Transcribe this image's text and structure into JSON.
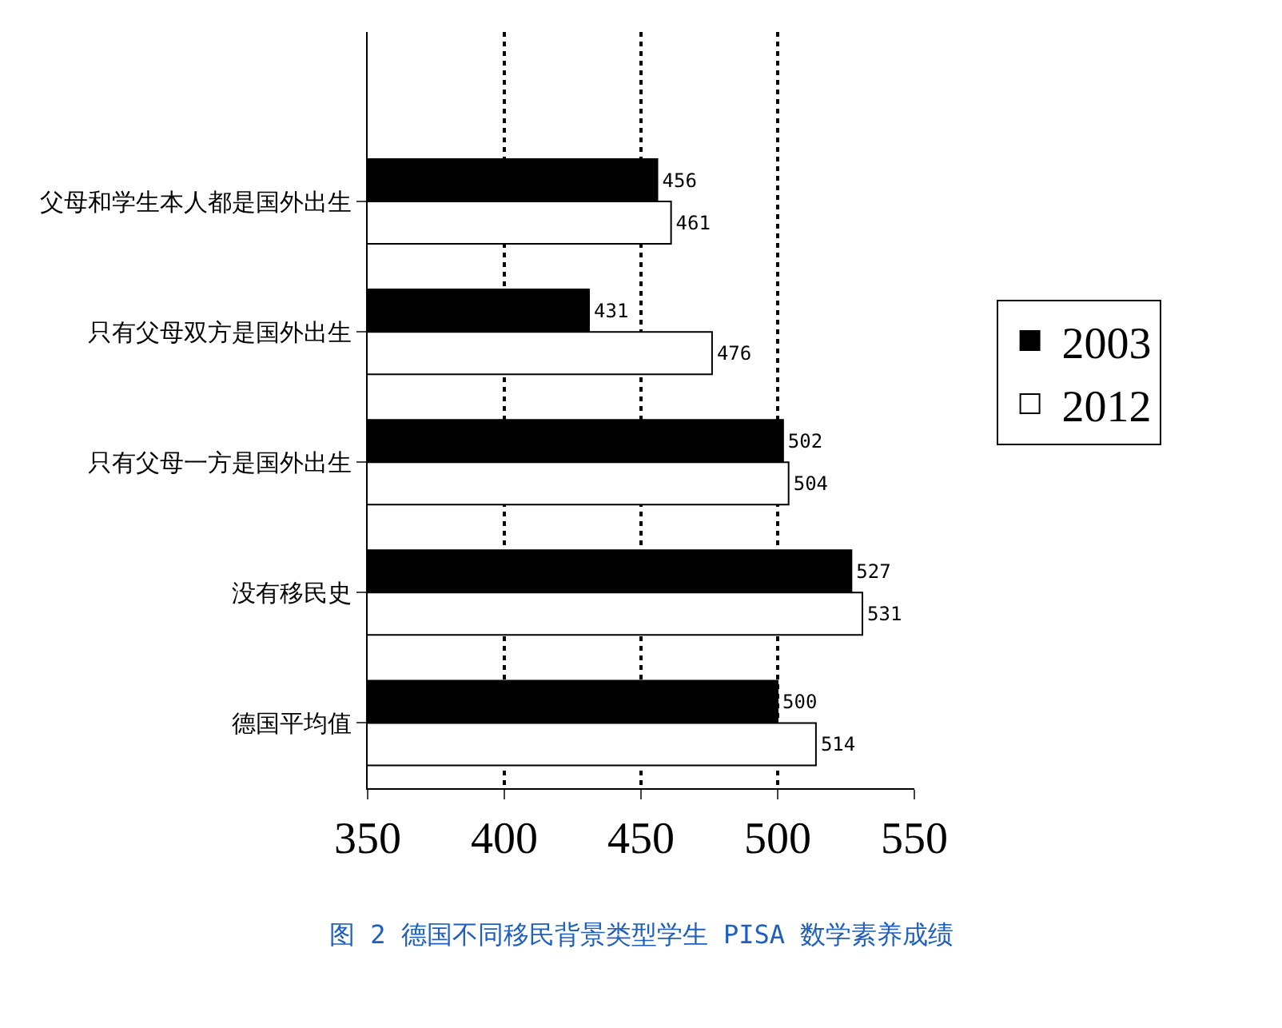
{
  "chart_data": {
    "type": "bar",
    "orientation": "horizontal",
    "categories": [
      "父母和学生本人都是国外出生",
      "只有父母双方是国外出生",
      "只有父母一方是国外出生",
      "没有移民史",
      "德国平均值"
    ],
    "series": [
      {
        "name": "2003",
        "color": "#000000",
        "values": [
          456,
          431,
          502,
          527,
          500
        ]
      },
      {
        "name": "2012",
        "color": "#ffffff",
        "values": [
          461,
          476,
          504,
          531,
          514
        ]
      }
    ],
    "xlim": [
      350,
      550
    ],
    "xticks": [
      350,
      400,
      450,
      500,
      550
    ],
    "grid": "x",
    "legend": "right",
    "data_labels": true,
    "annotations": [
      "图 2 德国不同移民背景类型学生 PISA 数学素养成绩"
    ]
  }
}
